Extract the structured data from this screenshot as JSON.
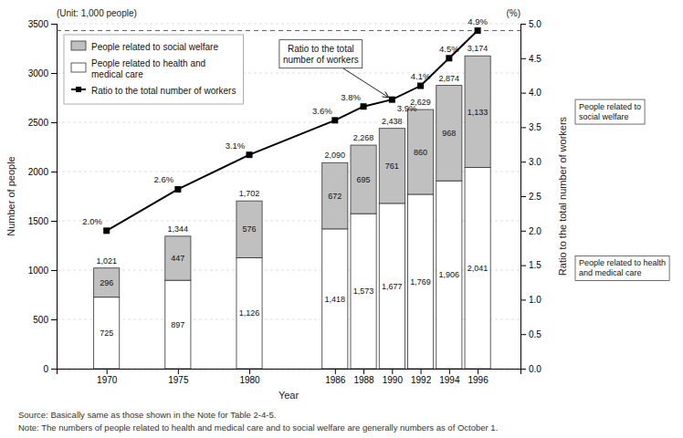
{
  "chart_data": {
    "type": "bar",
    "stacked": true,
    "data_labels": true,
    "grid": true,
    "legend": "upper left",
    "xlabel": "Year",
    "ylabel": "Number of people",
    "y2label": "Ratio to the total number of workers",
    "unit_label": "(Unit: 1,000 people)",
    "y2_unit_label": "(%)",
    "x": [
      1970,
      1975,
      1980,
      1986,
      1988,
      1990,
      1992,
      1994,
      1996
    ],
    "xlim": [
      1966.5,
      1999.0
    ],
    "xticks": [
      1970,
      1975,
      1980,
      1986,
      1988,
      1990,
      1992,
      1994,
      1996
    ],
    "ylim": [
      0,
      3500
    ],
    "yticks": [
      0,
      500,
      1000,
      1500,
      2000,
      2500,
      3000,
      3500
    ],
    "y2lim": [
      0.0,
      5.0
    ],
    "y2ticks": [
      {
        "value": 0.0,
        "label": "0.0"
      },
      0.5,
      {
        "value": 1.0,
        "label": "1.0"
      },
      1.5,
      {
        "value": 2.0,
        "label": "2.0"
      },
      2.5,
      {
        "value": 3.0,
        "label": "3.0"
      },
      3.5,
      {
        "value": 4.0,
        "label": "4.0"
      },
      4.5,
      {
        "value": 5.0,
        "label": "5.0"
      }
    ],
    "series": [
      {
        "name": "People related to health and\nmedical care",
        "type": "bar",
        "color": "#ffffff",
        "values": [
          725,
          897,
          1126,
          1418,
          1573,
          1677,
          1769,
          1906,
          2041
        ],
        "value_labels": [
          "725",
          "897",
          "1,126",
          "1,418",
          "1,573",
          "1,677",
          "1,769",
          "1,906",
          "2,041"
        ]
      },
      {
        "name": "People related to social welfare",
        "type": "bar",
        "color": "#c0c0c0",
        "values": [
          296,
          447,
          576,
          672,
          695,
          761,
          860,
          968,
          1133
        ],
        "value_labels": [
          "296",
          "447",
          "576",
          "672",
          "695",
          "761",
          "860",
          "968",
          "1,133"
        ]
      },
      {
        "name": "Ratio to the total number of workers",
        "type": "line",
        "axis": "y2",
        "color": "#000000",
        "marker": "square",
        "values": [
          2.0,
          2.6,
          3.1,
          3.6,
          3.8,
          3.9,
          4.1,
          4.5,
          4.9
        ],
        "value_labels": [
          "2.0%",
          "2.6%",
          "3.1%",
          "3.6%",
          "3.8%",
          "3.9%",
          "4.1%",
          "4.5%",
          "4.9%"
        ]
      }
    ],
    "totals": [
      1021,
      1344,
      1702,
      2090,
      2268,
      2438,
      2629,
      2874,
      3174
    ],
    "total_labels": [
      "1,021",
      "1,344",
      "1,702",
      "2,090",
      "2,268",
      "2,438",
      "2,629",
      "2,874",
      "3,174"
    ],
    "reference_lines": [
      {
        "value": 4.9,
        "axis": "y2",
        "line_style": "dashed"
      }
    ],
    "annotations": [
      {
        "text": "Ratio to the total\nnumber of workers",
        "x": 1990,
        "y": 3.9,
        "axis": "y2"
      }
    ],
    "segment_labels": [
      "People related to health\nand medical care",
      "People related to\nsocial welfare"
    ],
    "source": "Source:  Basically same as those shown in the Note for Table 2-4-5.",
    "note": "Note:  The numbers of people related to health and medical care and to social welfare are generally numbers as of October 1."
  }
}
